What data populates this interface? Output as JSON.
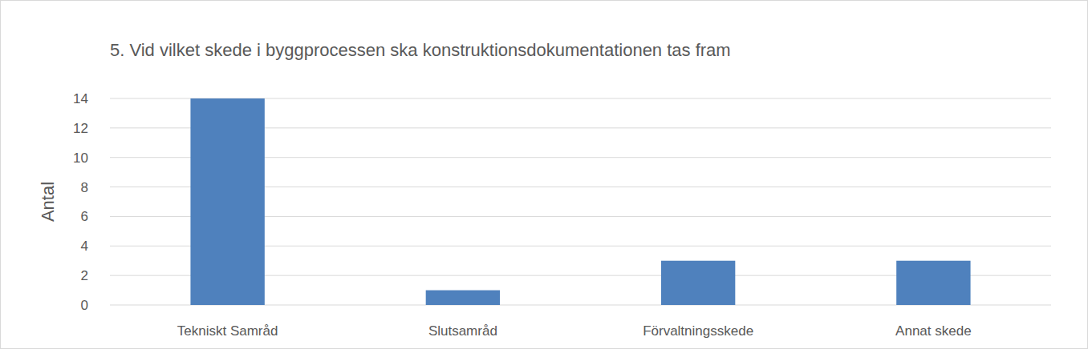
{
  "chart_data": {
    "type": "bar",
    "title": "5. Vid vilket skede i byggprocessen ska konstruktionsdokumentationen tas fram",
    "y_label": "Antal",
    "categories": [
      "Tekniskt Samråd",
      "Slutsamråd",
      "Förvaltningsskede",
      "Annat skede"
    ],
    "values": [
      14,
      1,
      3,
      3
    ],
    "color": "#4f81bd",
    "ylim": [
      0,
      14
    ],
    "yticks": [
      0,
      2,
      4,
      6,
      8,
      10,
      12,
      14
    ],
    "grid": true
  }
}
